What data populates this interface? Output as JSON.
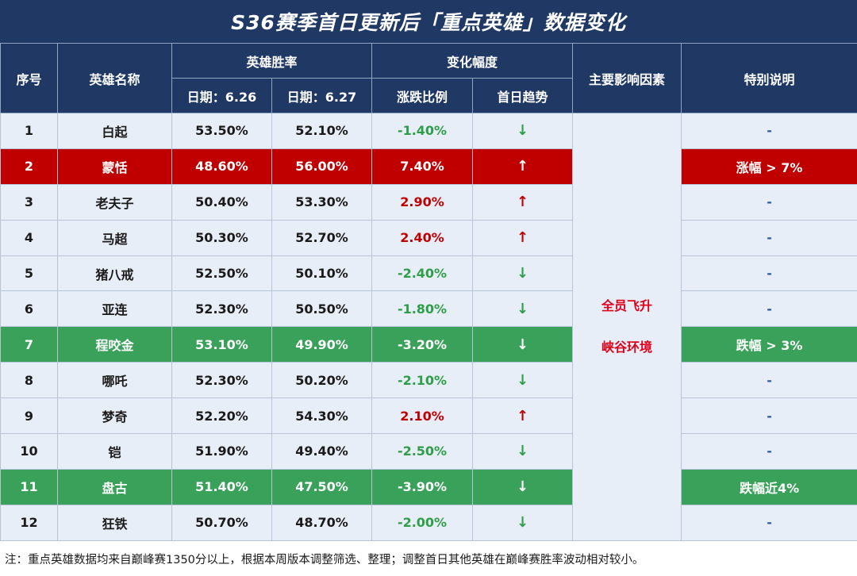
{
  "title": "S36赛季首日更新后「重点英雄」数据变化",
  "headers": {
    "index": "序号",
    "hero_name": "英雄名称",
    "win_rate": "英雄胜率",
    "change": "变化幅度",
    "main_factor": "主要影响因素",
    "special_note": "特别说明",
    "date1": "日期：6.26",
    "date2": "日期：6.27",
    "change_ratio": "涨跌比例",
    "first_day_trend": "首日趋势"
  },
  "main_factor_text": [
    "全员飞升",
    "峡谷环境"
  ],
  "rows": [
    {
      "idx": "1",
      "name": "白起",
      "d1": "53.50%",
      "d2": "52.10%",
      "change": "-1.40%",
      "trend": "↓",
      "note": "-"
    },
    {
      "idx": "2",
      "name": "蒙恬",
      "d1": "48.60%",
      "d2": "56.00%",
      "change": "7.40%",
      "trend": "↑",
      "note": "涨幅 > 7%"
    },
    {
      "idx": "3",
      "name": "老夫子",
      "d1": "50.40%",
      "d2": "53.30%",
      "change": "2.90%",
      "trend": "↑",
      "note": "-"
    },
    {
      "idx": "4",
      "name": "马超",
      "d1": "50.30%",
      "d2": "52.70%",
      "change": "2.40%",
      "trend": "↑",
      "note": "-"
    },
    {
      "idx": "5",
      "name": "猪八戒",
      "d1": "52.50%",
      "d2": "50.10%",
      "change": "-2.40%",
      "trend": "↓",
      "note": "-"
    },
    {
      "idx": "6",
      "name": "亚连",
      "d1": "52.30%",
      "d2": "50.50%",
      "change": "-1.80%",
      "trend": "↓",
      "note": "-"
    },
    {
      "idx": "7",
      "name": "程咬金",
      "d1": "53.10%",
      "d2": "49.90%",
      "change": "-3.20%",
      "trend": "↓",
      "note": "跌幅 > 3%"
    },
    {
      "idx": "8",
      "name": "哪吒",
      "d1": "52.30%",
      "d2": "50.20%",
      "change": "-2.10%",
      "trend": "↓",
      "note": "-"
    },
    {
      "idx": "9",
      "name": "梦奇",
      "d1": "52.20%",
      "d2": "54.30%",
      "change": "2.10%",
      "trend": "↑",
      "note": "-"
    },
    {
      "idx": "10",
      "name": "铠",
      "d1": "51.90%",
      "d2": "49.40%",
      "change": "-2.50%",
      "trend": "↓",
      "note": "-"
    },
    {
      "idx": "11",
      "name": "盘古",
      "d1": "51.40%",
      "d2": "47.50%",
      "change": "-3.90%",
      "trend": "↓",
      "note": "跌幅近4%"
    },
    {
      "idx": "12",
      "name": "狂铁",
      "d1": "50.70%",
      "d2": "48.70%",
      "change": "-2.00%",
      "trend": "↓",
      "note": "-"
    }
  ],
  "highlight": {
    "1": "red",
    "6": "green",
    "10": "green"
  },
  "colors": {
    "header_bg": "#1f3864",
    "row_bg": "#e8eef7",
    "red": "#c00000",
    "green": "#3aa15a",
    "factor_red": "#e0001a"
  },
  "footnote": "注：重点英雄数据均来自巅峰赛1350分以上，根据本周版本调整筛选、整理；调整首日其他英雄在巅峰赛胜率波动相对较小。"
}
